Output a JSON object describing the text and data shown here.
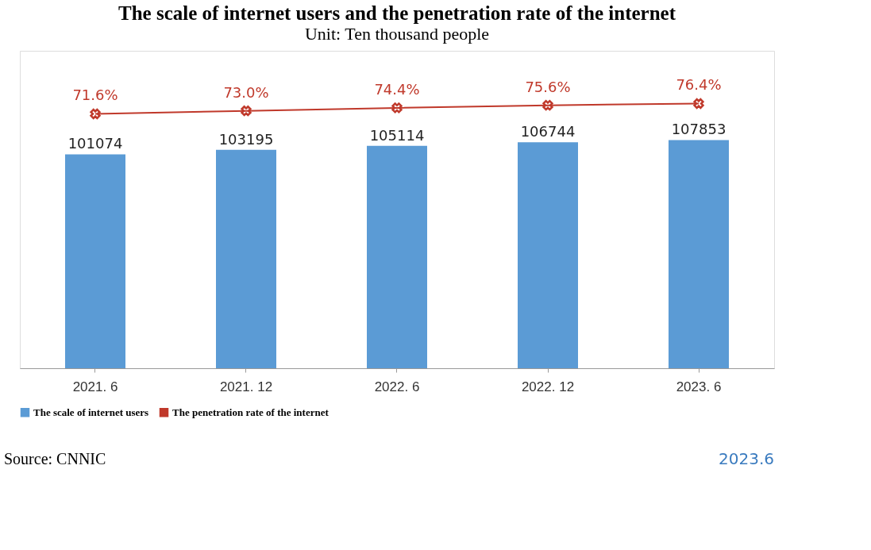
{
  "chart_data": {
    "type": "bar",
    "title": "The scale of internet users and the penetration rate of the internet",
    "subtitle": "Unit: Ten thousand people",
    "categories": [
      "2021. 6",
      "2021. 12",
      "2022. 6",
      "2022. 12",
      "2023. 6"
    ],
    "series": [
      {
        "name": "The scale of internet users",
        "color": "#5b9bd5",
        "values": [
          101074,
          103195,
          105114,
          106744,
          107853
        ]
      },
      {
        "name": "The penetration rate of the internet",
        "type": "line",
        "axis": "y2",
        "color": "#c0392b",
        "marker": "cross",
        "line_style": "solid",
        "values": [
          71.6,
          73.0,
          74.4,
          75.6,
          76.4
        ],
        "value_labels": [
          "71.6%",
          "73.0%",
          "74.4%",
          "75.6%",
          "76.4%"
        ]
      }
    ],
    "ylim": [
      0,
      150000
    ],
    "y2lim": [
      -47,
      101
    ],
    "tick_labels": "x",
    "data_labels": true,
    "grid": false,
    "legend": "bottom",
    "annotations": [
      "Source: CNNIC",
      "2023.6"
    ]
  }
}
